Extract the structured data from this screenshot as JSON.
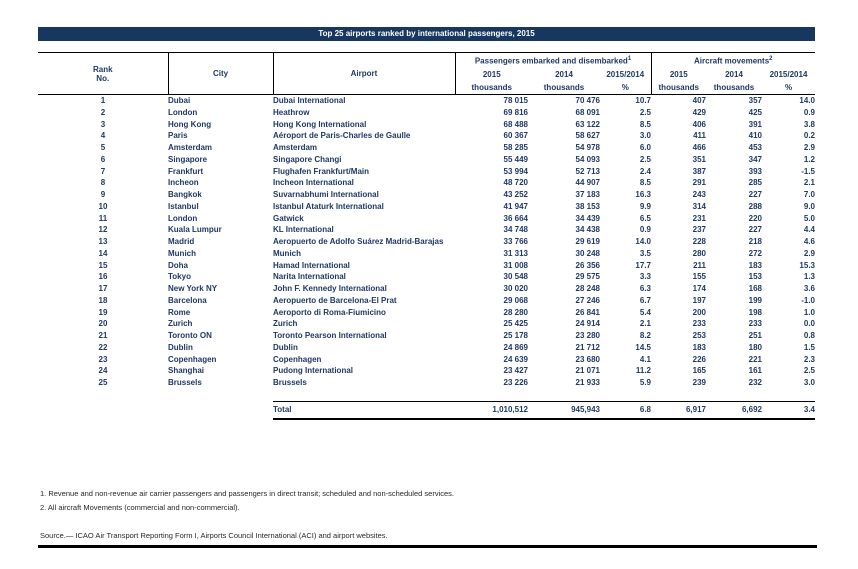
{
  "title": "Top 25 airports ranked by international passengers, 2015",
  "colors": {
    "title_bar": "#17375E",
    "table_text": "#1F3864",
    "note_text": "#262626"
  },
  "table": {
    "headers": {
      "rank_line1": "Rank",
      "rank_line2": "No.",
      "city": "City",
      "airport": "Airport",
      "passengers_group": "Passengers embarked and disembarked",
      "passengers_sup": "1",
      "aircraft_group": "Aircraft movements",
      "aircraft_sup": "2",
      "year_2015": "2015",
      "year_2014": "2014",
      "ratio": "2015/2014",
      "unit_thousands": "thousands",
      "unit_percent": "%"
    },
    "rows": [
      {
        "rank": "1",
        "city": "Dubai",
        "airport": "Dubai International",
        "p2015": "78 015",
        "p2014": "70 476",
        "ppct": "10.7",
        "a2015": "407",
        "a2014": "357",
        "apct": "14.0"
      },
      {
        "rank": "2",
        "city": "London",
        "airport": "Heathrow",
        "p2015": "69 816",
        "p2014": "68 091",
        "ppct": "2.5",
        "a2015": "429",
        "a2014": "425",
        "apct": "0.9"
      },
      {
        "rank": "3",
        "city": "Hong Kong",
        "airport": "Hong Kong International",
        "p2015": "68 488",
        "p2014": "63 122",
        "ppct": "8.5",
        "a2015": "406",
        "a2014": "391",
        "apct": "3.8"
      },
      {
        "rank": "4",
        "city": "Paris",
        "airport": "Aéroport de Paris-Charles de Gaulle",
        "p2015": "60 367",
        "p2014": "58 627",
        "ppct": "3.0",
        "a2015": "411",
        "a2014": "410",
        "apct": "0.2"
      },
      {
        "rank": "5",
        "city": "Amsterdam",
        "airport": "Amsterdam",
        "p2015": "58 285",
        "p2014": "54 978",
        "ppct": "6.0",
        "a2015": "466",
        "a2014": "453",
        "apct": "2.9"
      },
      {
        "rank": "6",
        "city": "Singapore",
        "airport": "Singapore Changi",
        "p2015": "55 449",
        "p2014": "54 093",
        "ppct": "2.5",
        "a2015": "351",
        "a2014": "347",
        "apct": "1.2"
      },
      {
        "rank": "7",
        "city": "Frankfurt",
        "airport": "Flughafen Frankfurt/Main",
        "p2015": "53 994",
        "p2014": "52 713",
        "ppct": "2.4",
        "a2015": "387",
        "a2014": "393",
        "apct": "-1.5"
      },
      {
        "rank": "8",
        "city": "Incheon",
        "airport": "Incheon International",
        "p2015": "48 720",
        "p2014": "44 907",
        "ppct": "8.5",
        "a2015": "291",
        "a2014": "285",
        "apct": "2.1"
      },
      {
        "rank": "9",
        "city": "Bangkok",
        "airport": "Suvarnabhumi International",
        "p2015": "43 252",
        "p2014": "37 183",
        "ppct": "16.3",
        "a2015": "243",
        "a2014": "227",
        "apct": "7.0"
      },
      {
        "rank": "10",
        "city": "Istanbul",
        "airport": "Istanbul Ataturk International",
        "p2015": "41 947",
        "p2014": "38 153",
        "ppct": "9.9",
        "a2015": "314",
        "a2014": "288",
        "apct": "9.0"
      },
      {
        "rank": "11",
        "city": "London",
        "airport": "Gatwick",
        "p2015": "36 664",
        "p2014": "34 439",
        "ppct": "6.5",
        "a2015": "231",
        "a2014": "220",
        "apct": "5.0"
      },
      {
        "rank": "12",
        "city": "Kuala Lumpur",
        "airport": "KL International",
        "p2015": "34 748",
        "p2014": "34 438",
        "ppct": "0.9",
        "a2015": "237",
        "a2014": "227",
        "apct": "4.4"
      },
      {
        "rank": "13",
        "city": "Madrid",
        "airport": "Aeropuerto de Adolfo Suárez Madrid-Barajas",
        "p2015": "33 766",
        "p2014": "29 619",
        "ppct": "14.0",
        "a2015": "228",
        "a2014": "218",
        "apct": "4.6"
      },
      {
        "rank": "14",
        "city": "Munich",
        "airport": "Munich",
        "p2015": "31 313",
        "p2014": "30 248",
        "ppct": "3.5",
        "a2015": "280",
        "a2014": "272",
        "apct": "2.9"
      },
      {
        "rank": "15",
        "city": "Doha",
        "airport": "Hamad International",
        "p2015": "31 008",
        "p2014": "26 356",
        "ppct": "17.7",
        "a2015": "211",
        "a2014": "183",
        "apct": "15.3"
      },
      {
        "rank": "16",
        "city": "Tokyo",
        "airport": "Narita International",
        "p2015": "30 548",
        "p2014": "29 575",
        "ppct": "3.3",
        "a2015": "155",
        "a2014": "153",
        "apct": "1.3"
      },
      {
        "rank": "17",
        "city": "New York NY",
        "airport": "John F. Kennedy International",
        "p2015": "30 020",
        "p2014": "28 248",
        "ppct": "6.3",
        "a2015": "174",
        "a2014": "168",
        "apct": "3.6"
      },
      {
        "rank": "18",
        "city": "Barcelona",
        "airport": "Aeropuerto de Barcelona-El Prat",
        "p2015": "29 068",
        "p2014": "27 246",
        "ppct": "6.7",
        "a2015": "197",
        "a2014": "199",
        "apct": "-1.0"
      },
      {
        "rank": "19",
        "city": "Rome",
        "airport": "Aeroporto di Roma-Fiumicino",
        "p2015": "28 280",
        "p2014": "26 841",
        "ppct": "5.4",
        "a2015": "200",
        "a2014": "198",
        "apct": "1.0"
      },
      {
        "rank": "20",
        "city": "Zurich",
        "airport": "Zurich",
        "p2015": "25 425",
        "p2014": "24 914",
        "ppct": "2.1",
        "a2015": "233",
        "a2014": "233",
        "apct": "0.0"
      },
      {
        "rank": "21",
        "city": "Toronto ON",
        "airport": "Toronto Pearson International",
        "p2015": "25 178",
        "p2014": "23 280",
        "ppct": "8.2",
        "a2015": "253",
        "a2014": "251",
        "apct": "0.8"
      },
      {
        "rank": "22",
        "city": "Dublin",
        "airport": "Dublin",
        "p2015": "24 869",
        "p2014": "21 712",
        "ppct": "14.5",
        "a2015": "183",
        "a2014": "180",
        "apct": "1.5"
      },
      {
        "rank": "23",
        "city": "Copenhagen",
        "airport": "Copenhagen",
        "p2015": "24 639",
        "p2014": "23 680",
        "ppct": "4.1",
        "a2015": "226",
        "a2014": "221",
        "apct": "2.3"
      },
      {
        "rank": "24",
        "city": "Shanghai",
        "airport": "Pudong International",
        "p2015": "23 427",
        "p2014": "21 071",
        "ppct": "11.2",
        "a2015": "165",
        "a2014": "161",
        "apct": "2.5"
      },
      {
        "rank": "25",
        "city": "Brussels",
        "airport": "Brussels",
        "p2015": "23 226",
        "p2014": "21 933",
        "ppct": "5.9",
        "a2015": "239",
        "a2014": "232",
        "apct": "3.0"
      }
    ],
    "total": {
      "label": "Total",
      "p2015": "1,010,512",
      "p2014": "945,943",
      "ppct": "6.8",
      "a2015": "6,917",
      "a2014": "6,692",
      "apct": "3.4"
    }
  },
  "footnotes": [
    "1. Revenue and non-revenue air carrier passengers and passengers in direct transit; scheduled and non-scheduled services.",
    "2. All aircraft Movements (commercial and non-commercial)."
  ],
  "source": "Source.— ICAO Air Transport Reporting Form I, Airports Council International (ACI) and airport websites."
}
